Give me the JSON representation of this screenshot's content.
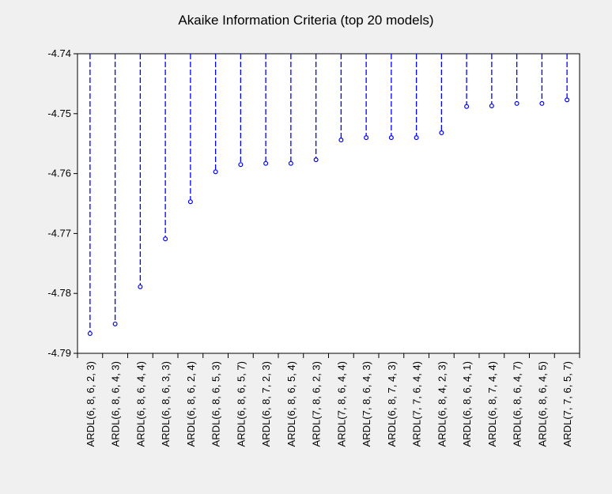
{
  "chart_data": {
    "type": "line",
    "title": "Akaike Information Criteria (top 20 models)",
    "xlabel": "",
    "ylabel": "",
    "ylim": [
      -4.79,
      -4.74
    ],
    "yticks": [
      -4.74,
      -4.75,
      -4.76,
      -4.77,
      -4.78,
      -4.79
    ],
    "categories": [
      "ARDL(6, 8, 6, 2, 3)",
      "ARDL(6, 8, 6, 4, 3)",
      "ARDL(6, 8, 6, 4, 4)",
      "ARDL(6, 8, 6, 3, 3)",
      "ARDL(6, 8, 6, 2, 4)",
      "ARDL(6, 8, 6, 5, 3)",
      "ARDL(6, 8, 6, 5, 7)",
      "ARDL(6, 8, 7, 2, 3)",
      "ARDL(6, 8, 6, 5, 4)",
      "ARDL(7, 8, 6, 2, 3)",
      "ARDL(7, 8, 6, 4, 4)",
      "ARDL(7, 8, 6, 4, 3)",
      "ARDL(6, 8, 7, 4, 3)",
      "ARDL(7, 7, 6, 4, 4)",
      "ARDL(6, 8, 4, 2, 3)",
      "ARDL(6, 8, 6, 4, 1)",
      "ARDL(6, 8, 7, 4, 4)",
      "ARDL(6, 8, 6, 4, 7)",
      "ARDL(6, 8, 6, 4, 5)",
      "ARDL(7, 7, 6, 5, 7)"
    ],
    "values": [
      -4.7867,
      -4.7851,
      -4.7789,
      -4.7709,
      -4.7647,
      -4.7597,
      -4.7585,
      -4.7583,
      -4.7583,
      -4.7577,
      -4.7544,
      -4.754,
      -4.754,
      -4.754,
      -4.7532,
      -4.7488,
      -4.7487,
      -4.7483,
      -4.7483,
      -4.7477
    ],
    "grid": false,
    "legend": "none",
    "colors": {
      "series": "#0000ff",
      "axis": "#000000",
      "plot_bg": "#ffffff",
      "window_bg": "#f0f0f0"
    }
  }
}
